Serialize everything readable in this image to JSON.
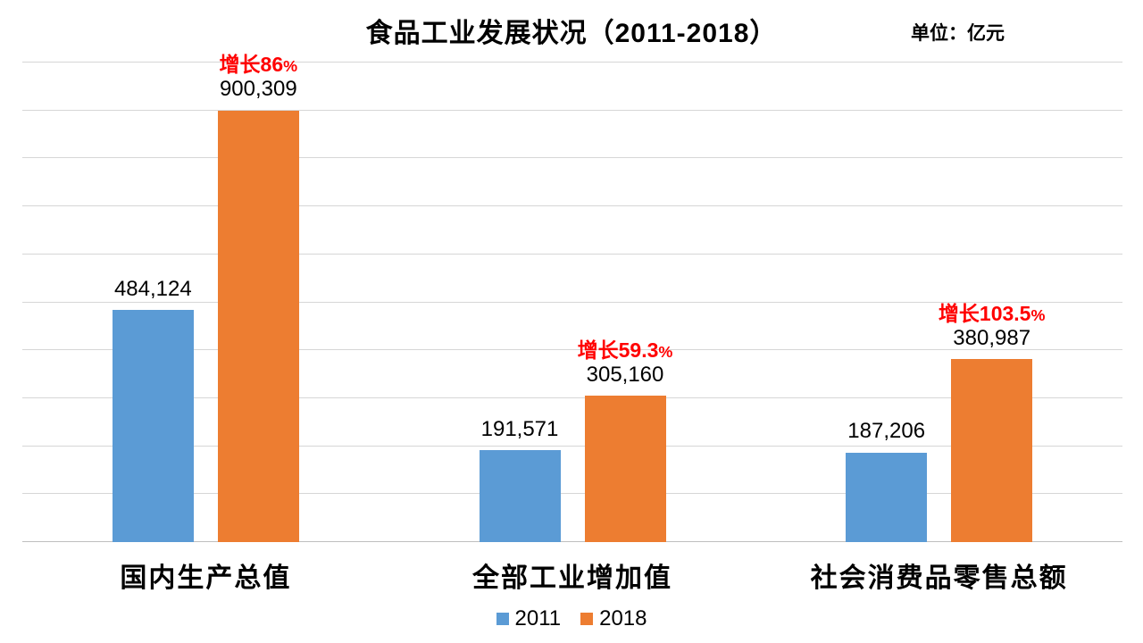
{
  "chart_data": {
    "type": "bar",
    "title": "食品工业发展状况（2011-2018）",
    "unit_label": "单位：亿元",
    "categories": [
      "国内生产总值",
      "全部工业增加值",
      "社会消费品零售总额"
    ],
    "series": [
      {
        "name": "2011",
        "color": "#5B9BD5",
        "values": [
          484124,
          191571,
          187206
        ],
        "value_labels": [
          "484,124",
          "191,571",
          "187,206"
        ]
      },
      {
        "name": "2018",
        "color": "#ED7D31",
        "values": [
          900309,
          305160,
          380987
        ],
        "value_labels": [
          "900,309",
          "305,160",
          "380,987"
        ]
      }
    ],
    "growth_annotations": [
      {
        "text": "增长86%",
        "on_category": "国内生产总值"
      },
      {
        "text": "增长59.3%",
        "on_category": "全部工业增加值"
      },
      {
        "text": "增长103.5%",
        "on_category": "社会消费品零售总额"
      }
    ],
    "ylim": [
      0,
      1000000
    ],
    "gridline_step": 100000,
    "grid": true,
    "y_axis_tick_labels_visible": false,
    "legend_position": "bottom",
    "legend_entries": [
      "2011",
      "2018"
    ],
    "annotation_color": "#FF0000",
    "gridline_color": "#D6D6D6",
    "axis_line_color": "#BFBFBF",
    "background_color": "#FFFFFF",
    "text_color": "#000000"
  }
}
